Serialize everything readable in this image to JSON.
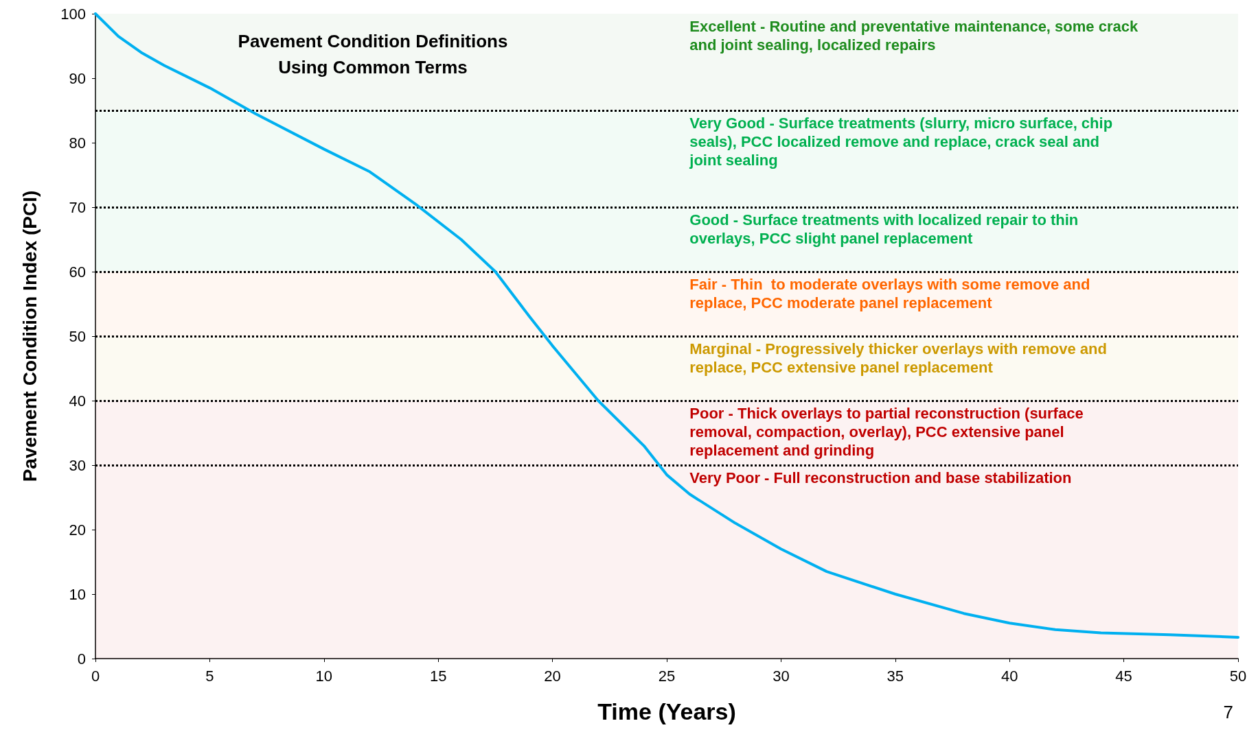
{
  "chart_data": {
    "type": "line",
    "title": "Pavement Condition Definitions\nUsing Common Terms",
    "xlabel": "Time (Years)",
    "ylabel": "Pavement Condition Index (PCI)",
    "x": [
      0,
      1,
      2,
      3,
      5,
      7,
      10,
      12,
      14,
      16,
      17.5,
      19,
      20,
      22,
      24,
      25,
      26,
      28,
      30,
      32,
      35,
      38,
      40,
      42,
      44,
      47,
      50
    ],
    "series": [
      {
        "color": "#00b0f0",
        "values": [
          100,
          96.5,
          94,
          92,
          88.5,
          84.5,
          79,
          75.5,
          70.5,
          65,
          60,
          53,
          48.5,
          40,
          33,
          28.5,
          25.5,
          21,
          17,
          13.5,
          10,
          7,
          5.5,
          4.5,
          4,
          3.7,
          3.3
        ]
      }
    ],
    "xlim": [
      0,
      50
    ],
    "xticks": [
      0,
      5,
      10,
      15,
      20,
      25,
      30,
      35,
      40,
      45,
      50
    ],
    "ylim": [
      0,
      100
    ],
    "yticks": [
      0,
      10,
      20,
      30,
      40,
      50,
      60,
      70,
      80,
      90,
      100
    ],
    "grid": false,
    "marker": "none",
    "line_style": "solid",
    "ref_lines": [
      {
        "axis": "y",
        "value": 85,
        "line_style": "dotted",
        "color": "#000000"
      },
      {
        "axis": "y",
        "value": 70,
        "line_style": "dotted",
        "color": "#000000"
      },
      {
        "axis": "y",
        "value": 60,
        "line_style": "dotted",
        "color": "#000000"
      },
      {
        "axis": "y",
        "value": 50,
        "line_style": "dotted",
        "color": "#000000"
      },
      {
        "axis": "y",
        "value": 40,
        "line_style": "dotted",
        "color": "#000000"
      },
      {
        "axis": "y",
        "value": 30,
        "line_style": "dotted",
        "color": "#000000"
      }
    ],
    "bands": [
      {
        "axis": "y",
        "from": 85,
        "to": 100,
        "color": "#1e8c1e",
        "label": "Excellent - Routine and preventative maintenance, some crack\nand joint sealing, localized repairs"
      },
      {
        "axis": "y",
        "from": 70,
        "to": 85,
        "color": "#00b050",
        "label": "Very Good - Surface treatments (slurry, micro surface, chip\nseals), PCC localized remove and replace, crack seal and\njoint sealing"
      },
      {
        "axis": "y",
        "from": 60,
        "to": 70,
        "color": "#00b050",
        "label": "Good - Surface treatments with localized repair to thin\noverlays, PCC slight panel replacement"
      },
      {
        "axis": "y",
        "from": 50,
        "to": 60,
        "color": "#ff6600",
        "label": "Fair - Thin  to moderate overlays with some remove and\nreplace, PCC moderate panel replacement"
      },
      {
        "axis": "y",
        "from": 40,
        "to": 50,
        "color": "#cc9900",
        "label": "Marginal - Progressively thicker overlays with remove and\nreplace, PCC extensive panel replacement"
      },
      {
        "axis": "y",
        "from": 30,
        "to": 40,
        "color": "#c00000",
        "label": "Poor - Thick overlays to partial reconstruction (surface\nremoval, compaction, overlay), PCC extensive panel\nreplacement and grinding"
      },
      {
        "axis": "y",
        "from": 0,
        "to": 30,
        "color": "#c00000",
        "label": "Very Poor - Full reconstruction and base stabilization"
      }
    ],
    "annotations": [
      "7"
    ]
  }
}
